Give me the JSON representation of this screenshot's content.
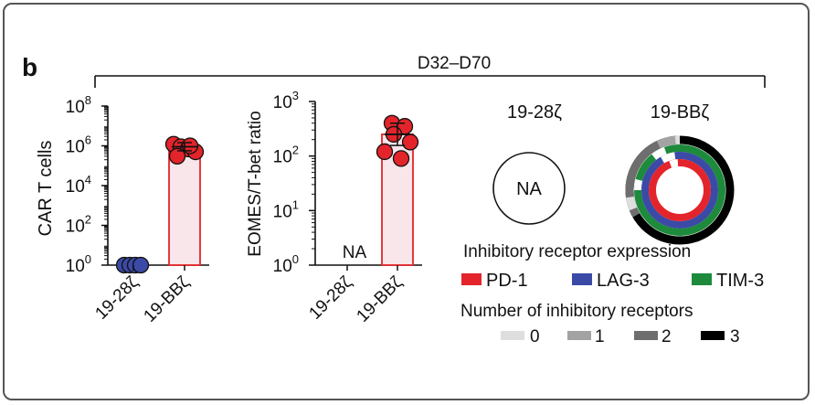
{
  "panel_letter": "b",
  "header": "D32–D70",
  "chart_data": [
    {
      "type": "bar",
      "ylabel": "CAR T cells",
      "scale": "log",
      "ylim": [
        1,
        100000000
      ],
      "ytick_labels": [
        {
          "base": "10",
          "exp": "0"
        },
        {
          "base": "10",
          "exp": "2"
        },
        {
          "base": "10",
          "exp": "4"
        },
        {
          "base": "10",
          "exp": "6"
        },
        {
          "base": "10",
          "exp": "8"
        }
      ],
      "ytick_values": [
        1,
        100,
        10000,
        1000000,
        100000000
      ],
      "categories": [
        "19-28ζ",
        "19-BBζ"
      ],
      "values": [
        1,
        900000
      ],
      "points": [
        [
          1,
          1,
          1,
          1
        ],
        [
          1200000,
          900000,
          700000,
          500000,
          300000,
          1000000
        ]
      ],
      "bar_colors": [
        "#3949a3",
        "#e3242b"
      ],
      "point_colors": [
        "#3b4aa6",
        "#e3242b"
      ]
    },
    {
      "type": "bar",
      "ylabel": "EOMES/T-bet ratio",
      "scale": "log",
      "ylim": [
        1,
        1000
      ],
      "ytick_labels": [
        {
          "base": "10",
          "exp": "0"
        },
        {
          "base": "10",
          "exp": "1"
        },
        {
          "base": "10",
          "exp": "2"
        },
        {
          "base": "10",
          "exp": "3"
        }
      ],
      "ytick_values": [
        1,
        10,
        100,
        1000
      ],
      "categories": [
        "19-28ζ",
        "19-BBζ"
      ],
      "values": [
        null,
        250
      ],
      "na_label": "NA",
      "points": [
        [],
        [
          400,
          350,
          250,
          180,
          120,
          90
        ]
      ],
      "bar_colors": [
        "#3949a3",
        "#e3242b"
      ],
      "point_colors": [
        "#3b4aa6",
        "#e3242b"
      ]
    }
  ],
  "donuts": {
    "left_title": "19-28ζ",
    "left_na": "NA",
    "right_title": "19-BBζ",
    "legend_title_1": "Inhibitory receptor expression",
    "receptors": [
      {
        "name": "PD-1",
        "color": "#e3242b"
      },
      {
        "name": "LAG-3",
        "color": "#3b4aa6"
      },
      {
        "name": "TIM-3",
        "color": "#1d8a3c"
      }
    ],
    "legend_title_2": "Number of  inhibitory receptors",
    "counts": [
      {
        "label": "0",
        "color": "#dedede"
      },
      {
        "label": "1",
        "color": "#a3a3a3"
      },
      {
        "label": "2",
        "color": "#6e6e6e"
      },
      {
        "label": "3",
        "color": "#000000"
      }
    ]
  }
}
